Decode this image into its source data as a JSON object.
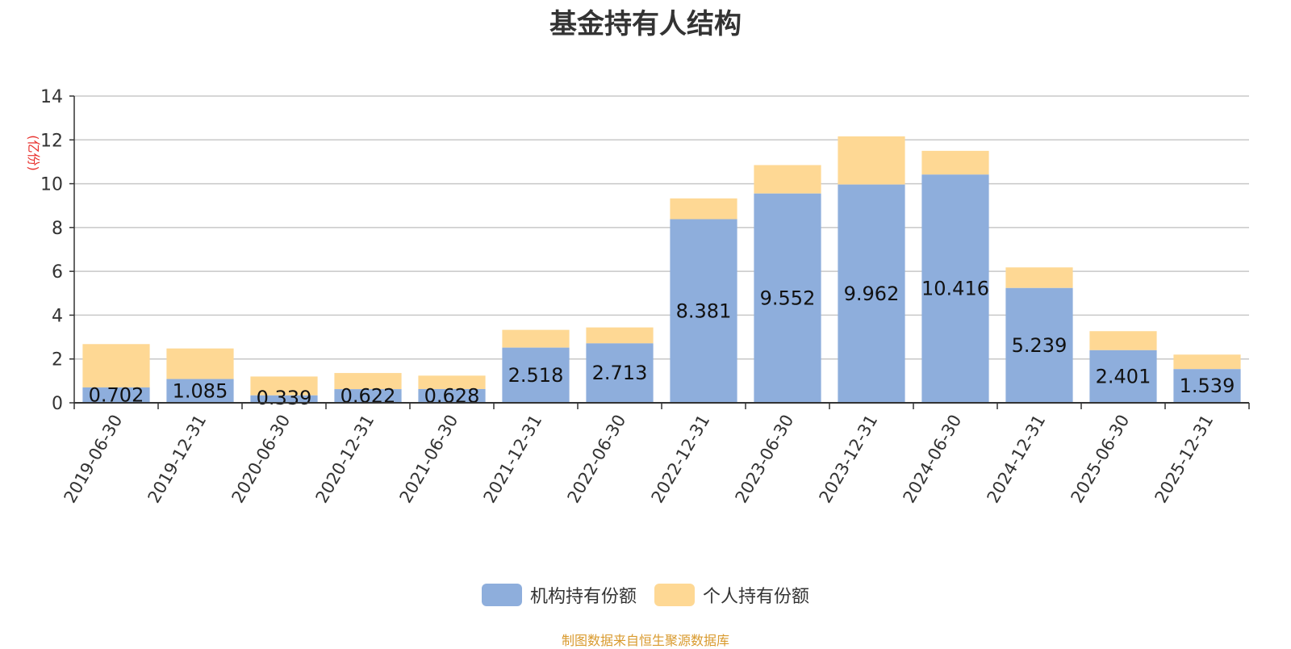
{
  "title": "基金持有人结构",
  "source": "制图数据来自恒生聚源数据库",
  "colors": {
    "institution": "#8eaedc",
    "individual": "#fed894",
    "ylabel": "#e8302c",
    "grid": "#c8c8c8",
    "axis": "#333333"
  },
  "chart_data": {
    "type": "bar",
    "stacked": true,
    "title": "基金持有人结构",
    "ylabel": "(亿份)",
    "xlabel": "",
    "ylim": [
      0,
      14
    ],
    "yticks": [
      0,
      2,
      4,
      6,
      8,
      10,
      12,
      14
    ],
    "grid": true,
    "legend_position": "bottom",
    "categories": [
      "2019-06-30",
      "2019-12-31",
      "2020-06-30",
      "2020-12-31",
      "2021-06-30",
      "2021-12-31",
      "2022-06-30",
      "2022-12-31",
      "2023-06-30",
      "2023-12-31",
      "2024-06-30",
      "2024-12-31",
      "2025-06-30",
      "2025-12-31"
    ],
    "series": [
      {
        "name": "机构持有份额",
        "color": "#8eaedc",
        "values": [
          0.702,
          1.085,
          0.339,
          0.622,
          0.628,
          2.518,
          2.713,
          8.381,
          9.552,
          9.962,
          10.416,
          5.239,
          2.401,
          1.539
        ],
        "labels": [
          "0.702",
          "1.085",
          "0.339",
          "0.622",
          "0.628",
          "2.518",
          "2.713",
          "8.381",
          "9.552",
          "9.962",
          "10.416",
          "5.239",
          "2.401",
          "1.539"
        ]
      },
      {
        "name": "个人持有份额",
        "color": "#fed894",
        "values": [
          1.978,
          1.395,
          0.861,
          0.738,
          0.612,
          0.812,
          0.727,
          0.949,
          1.298,
          2.198,
          1.084,
          0.941,
          0.869,
          0.661
        ]
      }
    ]
  }
}
